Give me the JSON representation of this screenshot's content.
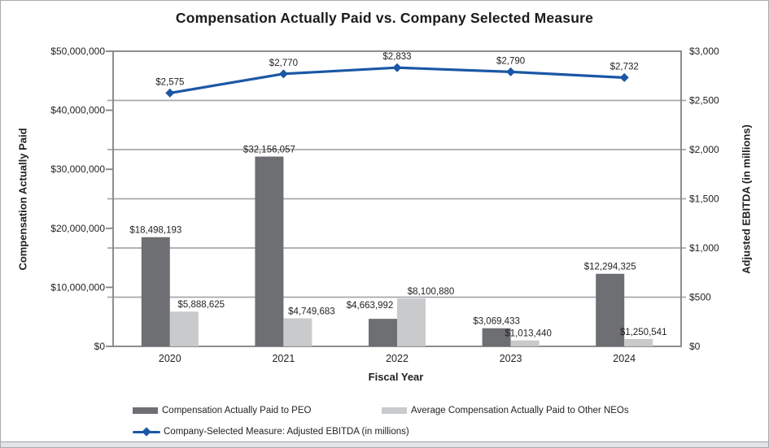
{
  "chart_data": {
    "type": "combo-bar-line",
    "title": "Compensation Actually Paid vs. Company Selected Measure",
    "categories": [
      "2020",
      "2021",
      "2022",
      "2023",
      "2024"
    ],
    "series": [
      {
        "name": "Compensation Actually Paid to PEO",
        "type": "bar",
        "axis": "left",
        "color": "#6e6f72",
        "values": [
          18498193,
          32156057,
          4663992,
          3069433,
          12294325
        ],
        "labels": [
          "$18,498,193",
          "$32,156,057",
          "$4,663,992",
          "$3,069,433",
          "$12,294,325"
        ]
      },
      {
        "name": "Average Compensation Actually Paid to Other NEOs",
        "type": "bar",
        "axis": "left",
        "color": "#c9cacc",
        "values": [
          5888625,
          4749683,
          8100880,
          1013440,
          1250541
        ],
        "labels": [
          "$5,888,625",
          "$4,749,683",
          "$8,100,880",
          "$1,013,440",
          "$1,250,541"
        ]
      },
      {
        "name": "Company-Selected Measure: Adjusted EBITDA (in millions)",
        "type": "line",
        "axis": "right",
        "color": "#1b57a5",
        "values": [
          2575,
          2770,
          2833,
          2790,
          2732
        ],
        "labels": [
          "$2,575",
          "$2,770",
          "$2,833",
          "$2,790",
          "$2,732"
        ]
      }
    ],
    "left_axis": {
      "title": "Compensation Actually Paid",
      "min": 0,
      "max": 50000000,
      "tick_labels_top_down": [
        "$50,000,000",
        "$40,000,000",
        "$30,000,000",
        "$20,000,000",
        "$10,000,000",
        "$0"
      ]
    },
    "right_axis": {
      "title": "Adjusted EBITDA (in millions)",
      "min": 0,
      "max": 3000,
      "tick_labels_top_down": [
        "$3,000",
        "$2,500",
        "$2,000",
        "$1,500",
        "$1,000",
        "$500",
        "$0"
      ]
    },
    "x_axis": {
      "title": "Fiscal Year"
    },
    "legend_position": "bottom",
    "grid": "horizontal",
    "colors": {
      "text": "#231f20",
      "gridline": "#a6a8ab",
      "axis_border": "#808285",
      "bar_peo": "#6e6f72",
      "bar_neo": "#c9cacc",
      "line_blue": "#1b57a5"
    }
  }
}
